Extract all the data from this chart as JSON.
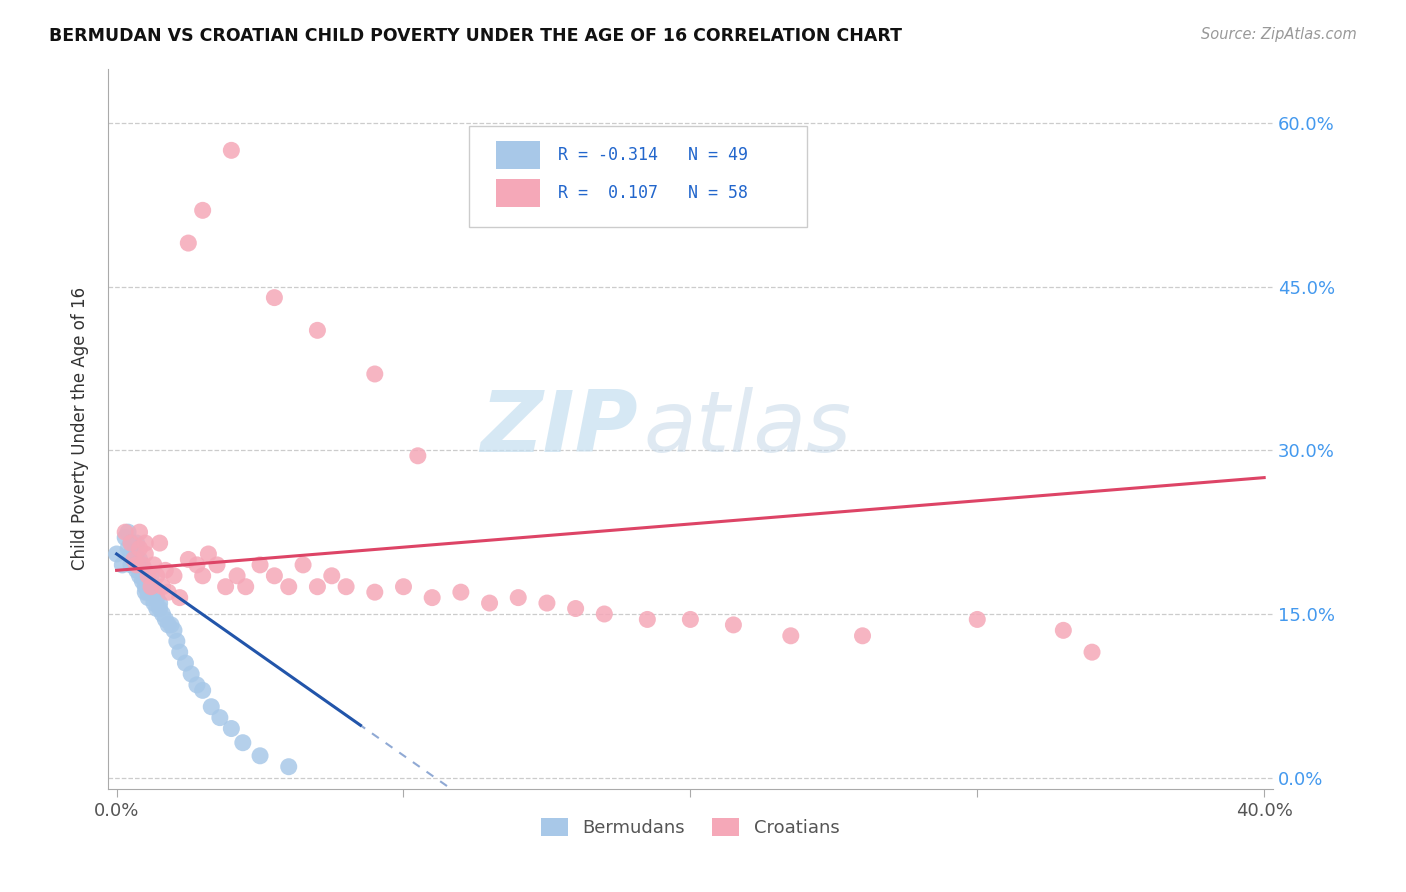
{
  "title": "BERMUDAN VS CROATIAN CHILD POVERTY UNDER THE AGE OF 16 CORRELATION CHART",
  "source": "Source: ZipAtlas.com",
  "ylabel": "Child Poverty Under the Age of 16",
  "xlim": [
    0.0,
    0.4
  ],
  "ylim": [
    0.0,
    0.65
  ],
  "blue_color": "#a8c8e8",
  "pink_color": "#f5a8b8",
  "blue_line_color": "#2255aa",
  "pink_line_color": "#dd4466",
  "blue_r": -0.314,
  "blue_n": 49,
  "pink_r": 0.107,
  "pink_n": 58,
  "bermudans_x": [
    0.0,
    0.002,
    0.003,
    0.004,
    0.004,
    0.005,
    0.005,
    0.005,
    0.006,
    0.006,
    0.007,
    0.007,
    0.007,
    0.008,
    0.008,
    0.008,
    0.009,
    0.009,
    0.01,
    0.01,
    0.01,
    0.01,
    0.011,
    0.011,
    0.012,
    0.012,
    0.013,
    0.013,
    0.014,
    0.014,
    0.015,
    0.015,
    0.016,
    0.017,
    0.018,
    0.019,
    0.02,
    0.021,
    0.022,
    0.024,
    0.026,
    0.028,
    0.03,
    0.033,
    0.036,
    0.04,
    0.044,
    0.05,
    0.06
  ],
  "bermudans_y": [
    0.205,
    0.195,
    0.22,
    0.21,
    0.225,
    0.215,
    0.205,
    0.195,
    0.21,
    0.2,
    0.19,
    0.2,
    0.215,
    0.195,
    0.185,
    0.2,
    0.18,
    0.19,
    0.19,
    0.18,
    0.17,
    0.175,
    0.17,
    0.165,
    0.185,
    0.175,
    0.16,
    0.17,
    0.155,
    0.165,
    0.16,
    0.155,
    0.15,
    0.145,
    0.14,
    0.14,
    0.135,
    0.125,
    0.115,
    0.105,
    0.095,
    0.085,
    0.08,
    0.065,
    0.055,
    0.045,
    0.032,
    0.02,
    0.01
  ],
  "croatians_x": [
    0.003,
    0.005,
    0.006,
    0.007,
    0.008,
    0.008,
    0.009,
    0.01,
    0.01,
    0.011,
    0.012,
    0.013,
    0.014,
    0.015,
    0.016,
    0.017,
    0.018,
    0.02,
    0.022,
    0.025,
    0.028,
    0.03,
    0.032,
    0.035,
    0.038,
    0.042,
    0.045,
    0.05,
    0.055,
    0.06,
    0.065,
    0.07,
    0.075,
    0.08,
    0.09,
    0.1,
    0.11,
    0.12,
    0.13,
    0.14,
    0.15,
    0.16,
    0.17,
    0.185,
    0.2,
    0.215,
    0.235,
    0.26,
    0.3,
    0.33,
    0.34,
    0.04,
    0.03,
    0.025,
    0.055,
    0.07,
    0.09,
    0.105
  ],
  "croatians_y": [
    0.225,
    0.215,
    0.2,
    0.195,
    0.21,
    0.225,
    0.195,
    0.205,
    0.215,
    0.185,
    0.175,
    0.195,
    0.185,
    0.215,
    0.175,
    0.19,
    0.17,
    0.185,
    0.165,
    0.2,
    0.195,
    0.185,
    0.205,
    0.195,
    0.175,
    0.185,
    0.175,
    0.195,
    0.185,
    0.175,
    0.195,
    0.175,
    0.185,
    0.175,
    0.17,
    0.175,
    0.165,
    0.17,
    0.16,
    0.165,
    0.16,
    0.155,
    0.15,
    0.145,
    0.145,
    0.14,
    0.13,
    0.13,
    0.145,
    0.135,
    0.115,
    0.575,
    0.52,
    0.49,
    0.44,
    0.41,
    0.37,
    0.295
  ],
  "blue_line_x": [
    0.0,
    0.085
  ],
  "blue_line_y": [
    0.205,
    0.048
  ],
  "pink_line_x": [
    0.0,
    0.4
  ],
  "pink_line_y": [
    0.19,
    0.275
  ]
}
